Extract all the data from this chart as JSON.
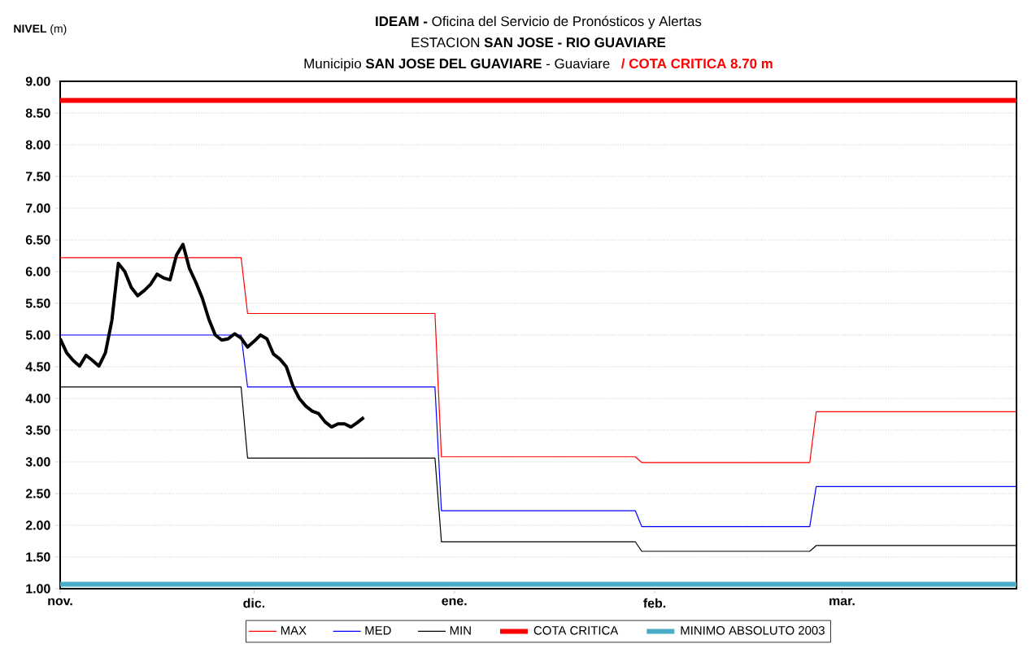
{
  "chart_data": {
    "type": "line",
    "title": "**IDEAM -** Oficina del Servicio de Pronósticos y Alertas",
    "subtitle": "ESTACION **SAN JOSE - RIO GUAVIARE**",
    "annotations": [
      "Municipio **SAN JOSE DEL GUAVIARE** - Guaviare",
      "/ COTA CRITICA 8.70 m"
    ],
    "ylabel": "**NIVEL** (m)",
    "xlim": [
      "2003-11-01",
      "2004-03-28"
    ],
    "ylim": [
      1,
      9
    ],
    "xticks": [
      {
        "value": "2003-11-01",
        "label": "nov."
      },
      {
        "value": "2003-12-01",
        "label": "dic."
      },
      {
        "value": "2004-01-01",
        "label": "ene."
      },
      {
        "value": "2004-02-01",
        "label": "feb."
      },
      {
        "value": "2004-03-01",
        "label": "mar."
      }
    ],
    "yticks": [
      {
        "value": 1,
        "label": "1.00"
      },
      {
        "value": 1.5,
        "label": "1.50"
      },
      {
        "value": 2,
        "label": "2.00"
      },
      {
        "value": 2.5,
        "label": "2.50"
      },
      {
        "value": 3,
        "label": "3.00"
      },
      {
        "value": 3.5,
        "label": "3.50"
      },
      {
        "value": 4,
        "label": "4.00"
      },
      {
        "value": 4.5,
        "label": "4.50"
      },
      {
        "value": 5,
        "label": "5.00"
      },
      {
        "value": 5.5,
        "label": "5.50"
      },
      {
        "value": 6,
        "label": "6.00"
      },
      {
        "value": 6.5,
        "label": "6.50"
      },
      {
        "value": 7,
        "label": "7.00"
      },
      {
        "value": 7.5,
        "label": "7.50"
      },
      {
        "value": 8,
        "label": "8.00"
      },
      {
        "value": 8.5,
        "label": "8.50"
      },
      {
        "value": 9,
        "label": "9.00"
      }
    ],
    "grid": "y",
    "legend": "bottom",
    "marker": "none",
    "line_style": "solid",
    "series": [
      {
        "name": "MAX",
        "color": "#ff0000",
        "x": [
          "2003-11-01",
          "2003-11-29",
          "2003-11-30",
          "2003-12-29",
          "2003-12-30",
          "2004-01-29",
          "2004-01-30",
          "2004-02-25",
          "2004-02-26",
          "2004-03-28"
        ],
        "values": [
          6.22,
          6.22,
          5.34,
          5.34,
          3.08,
          3.08,
          2.99,
          2.99,
          3.79,
          3.79
        ]
      },
      {
        "name": "MED",
        "color": "#0000ff",
        "x": [
          "2003-11-01",
          "2003-11-29",
          "2003-11-30",
          "2003-12-29",
          "2003-12-30",
          "2004-01-29",
          "2004-01-30",
          "2004-02-25",
          "2004-02-26",
          "2004-03-28"
        ],
        "values": [
          5.0,
          5.0,
          4.18,
          4.18,
          2.23,
          2.23,
          1.98,
          1.98,
          2.61,
          2.61
        ]
      },
      {
        "name": "MIN",
        "color": "#000000",
        "x": [
          "2003-11-01",
          "2003-11-29",
          "2003-11-30",
          "2003-12-29",
          "2003-12-30",
          "2004-01-29",
          "2004-01-30",
          "2004-02-25",
          "2004-02-26",
          "2004-03-28"
        ],
        "values": [
          4.18,
          4.18,
          3.06,
          3.06,
          1.74,
          1.74,
          1.59,
          1.59,
          1.68,
          1.68
        ]
      },
      {
        "color": "#000000",
        "x": [
          "2003-11-01",
          "2003-11-02",
          "2003-11-03",
          "2003-11-04",
          "2003-11-05",
          "2003-11-06",
          "2003-11-07",
          "2003-11-08",
          "2003-11-09",
          "2003-11-10",
          "2003-11-11",
          "2003-11-12",
          "2003-11-13",
          "2003-11-14",
          "2003-11-15",
          "2003-11-16",
          "2003-11-17",
          "2003-11-18",
          "2003-11-19",
          "2003-11-20",
          "2003-11-21",
          "2003-11-22",
          "2003-11-23",
          "2003-11-24",
          "2003-11-25",
          "2003-11-26",
          "2003-11-27",
          "2003-11-28",
          "2003-11-29",
          "2003-11-30",
          "2003-12-01",
          "2003-12-02",
          "2003-12-03",
          "2003-12-04",
          "2003-12-05",
          "2003-12-06",
          "2003-12-07",
          "2003-12-08",
          "2003-12-09",
          "2003-12-10",
          "2003-12-11",
          "2003-12-12",
          "2003-12-13",
          "2003-12-14",
          "2003-12-15",
          "2003-12-16",
          "2003-12-17",
          "2003-12-18"
        ],
        "values": [
          4.94,
          4.72,
          4.6,
          4.51,
          4.68,
          4.6,
          4.51,
          4.72,
          5.23,
          6.13,
          6.0,
          5.75,
          5.62,
          5.7,
          5.8,
          5.96,
          5.9,
          5.87,
          6.26,
          6.43,
          6.05,
          5.83,
          5.58,
          5.25,
          5.0,
          4.92,
          4.94,
          5.02,
          4.95,
          4.81,
          4.9,
          5.0,
          4.94,
          4.7,
          4.62,
          4.5,
          4.2,
          4.0,
          3.88,
          3.8,
          3.76,
          3.63,
          3.55,
          3.6,
          3.6,
          3.55,
          3.62,
          3.7
        ]
      }
    ],
    "ref_lines": [
      {
        "axis": "y",
        "value": 8.7,
        "label": "COTA CRITICA",
        "color": "#ff0000"
      },
      {
        "axis": "y",
        "value": 1.07,
        "label": "MINIMO ABSOLUTO 2003",
        "color": "#4bacc6"
      }
    ]
  }
}
